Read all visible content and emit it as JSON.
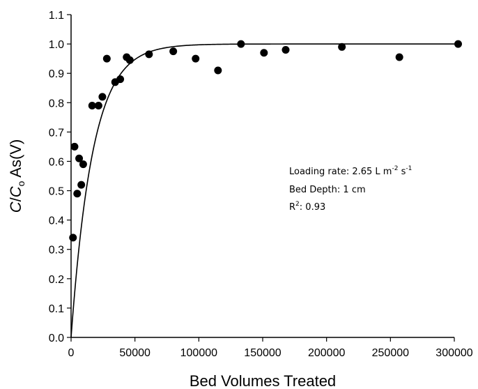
{
  "chart_data": {
    "type": "scatter",
    "xlabel": "Bed Volumes Treated",
    "ylabel_parts": [
      "C",
      "/",
      "C",
      "o",
      " As(V)"
    ],
    "xlim": [
      0,
      300000
    ],
    "ylim": [
      0,
      1.1
    ],
    "x_ticks": [
      0,
      50000,
      100000,
      150000,
      200000,
      250000,
      300000
    ],
    "x_tick_labels": [
      "0",
      "50000",
      "100000",
      "150000",
      "200000",
      "250000",
      "300000"
    ],
    "y_ticks": [
      0,
      0.1,
      0.2,
      0.3,
      0.4,
      0.5,
      0.6,
      0.7,
      0.8,
      0.9,
      1.0,
      1.1
    ],
    "y_tick_labels": [
      "0.0",
      "0.1",
      "0.2",
      "0.3",
      "0.4",
      "0.5",
      "0.6",
      "0.7",
      "0.8",
      "0.9",
      "1.0",
      "1.1"
    ],
    "grid": false,
    "series": [
      {
        "kind": "points",
        "x": [
          1500,
          2700,
          4800,
          6300,
          8000,
          9500,
          16500,
          21500,
          24500,
          28000,
          34500,
          38500,
          43500,
          46000,
          61000,
          80000,
          97500,
          115000,
          133000,
          151000,
          168000,
          212000,
          257000,
          303000
        ],
        "y": [
          0.34,
          0.65,
          0.49,
          0.61,
          0.52,
          0.59,
          0.79,
          0.79,
          0.82,
          0.95,
          0.87,
          0.88,
          0.955,
          0.945,
          0.965,
          0.975,
          0.95,
          0.91,
          1.0,
          0.97,
          0.98,
          0.99,
          0.955,
          1.0
        ]
      },
      {
        "kind": "fit-curve",
        "equation": "1 - exp(-(x - 0) / 17000)"
      }
    ],
    "annotation": {
      "loading_rate_prefix": "Loading rate: 2.65 L m",
      "loading_rate_exp1": "-2",
      "loading_rate_mid": " s",
      "loading_rate_exp2": "-1",
      "bed_depth": "Bed Depth: 1 cm",
      "r2_base": "R",
      "r2_exp": "2",
      "r2_value": ": 0.93"
    }
  }
}
